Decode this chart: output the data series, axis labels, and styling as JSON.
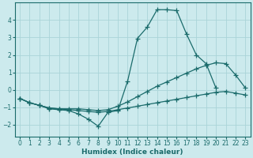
{
  "background_color": "#cceaed",
  "grid_color": "#aad4d8",
  "line_color": "#1a6b6b",
  "xlabel": "Humidex (Indice chaleur)",
  "xlim": [
    -0.5,
    23.5
  ],
  "ylim": [
    -2.7,
    5.0
  ],
  "yticks": [
    -2,
    -1,
    0,
    1,
    2,
    3,
    4
  ],
  "xticks": [
    0,
    1,
    2,
    3,
    4,
    5,
    6,
    7,
    8,
    9,
    10,
    11,
    12,
    13,
    14,
    15,
    16,
    17,
    18,
    19,
    20,
    21,
    22,
    23
  ],
  "line1_x": [
    0,
    1,
    2,
    3,
    4,
    5,
    6,
    7,
    8,
    9,
    10,
    11,
    12,
    13,
    14,
    15,
    16,
    17,
    18,
    19,
    20
  ],
  "line1_y": [
    -0.5,
    -0.75,
    -0.9,
    -1.1,
    -1.15,
    -1.2,
    -1.4,
    -1.7,
    -2.1,
    -1.3,
    -1.2,
    0.5,
    2.95,
    3.6,
    4.6,
    4.6,
    4.55,
    3.2,
    2.0,
    1.5,
    0.1
  ],
  "line2_x": [
    0,
    1,
    2,
    3,
    4,
    5,
    6,
    7,
    8,
    9,
    10,
    11,
    12,
    13,
    14,
    15,
    16,
    17,
    18,
    19,
    20,
    21,
    22,
    23
  ],
  "line2_y": [
    -0.5,
    -0.75,
    -0.9,
    -1.05,
    -1.1,
    -1.1,
    -1.1,
    -1.15,
    -1.2,
    -1.15,
    -0.95,
    -0.7,
    -0.4,
    -0.1,
    0.2,
    0.45,
    0.7,
    0.95,
    1.2,
    1.4,
    1.55,
    1.5,
    0.85,
    0.1
  ],
  "line3_x": [
    0,
    1,
    2,
    3,
    4,
    5,
    6,
    7,
    8,
    9,
    10,
    11,
    12,
    13,
    14,
    15,
    16,
    17,
    18,
    19,
    20,
    21,
    22,
    23
  ],
  "line3_y": [
    -0.5,
    -0.75,
    -0.9,
    -1.05,
    -1.1,
    -1.15,
    -1.2,
    -1.25,
    -1.3,
    -1.25,
    -1.15,
    -1.05,
    -0.95,
    -0.85,
    -0.75,
    -0.65,
    -0.55,
    -0.45,
    -0.35,
    -0.25,
    -0.15,
    -0.1,
    -0.2,
    -0.3
  ]
}
